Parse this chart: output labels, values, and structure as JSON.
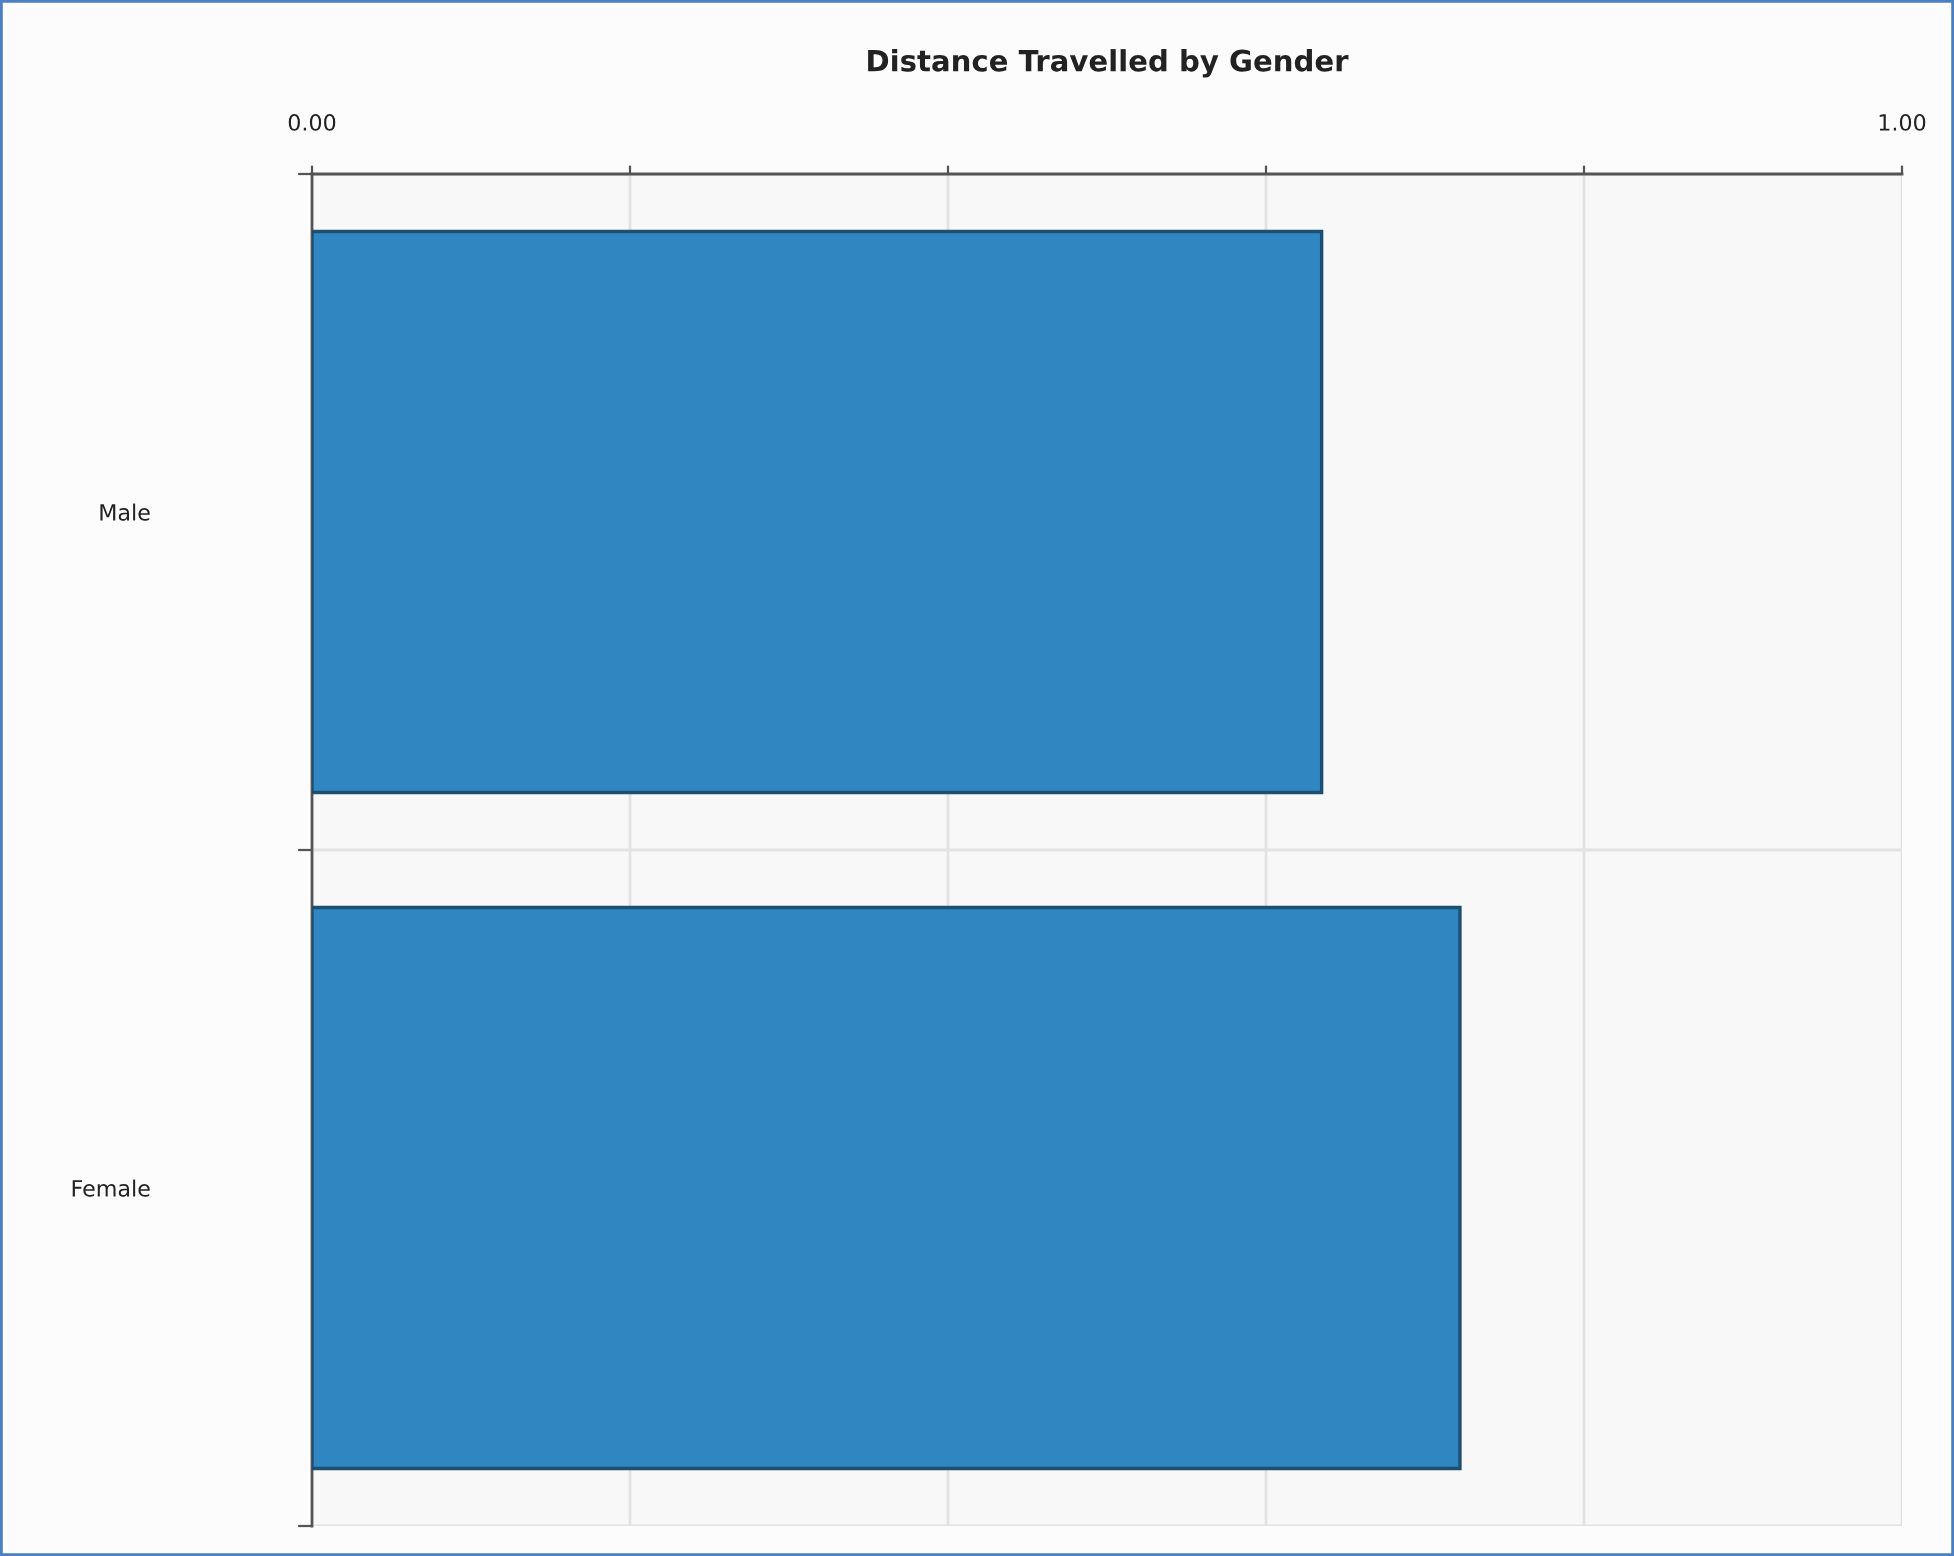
{
  "chart_data": {
    "type": "bar",
    "title": "Distance Travelled by Gender",
    "orientation": "horizontal",
    "categories": [
      "Male",
      "Female"
    ],
    "values": [
      0.635,
      0.722
    ],
    "color": "#2f86c0",
    "xlim": [
      0,
      1
    ],
    "xticks": [
      {
        "value": 0,
        "label": "0.00"
      },
      {
        "value": 0.2,
        "label": null
      },
      {
        "value": 0.4,
        "label": null
      },
      {
        "value": 0.6,
        "label": null
      },
      {
        "value": 0.8,
        "label": null
      },
      {
        "value": 1,
        "label": "1.00"
      }
    ],
    "grid": true
  }
}
